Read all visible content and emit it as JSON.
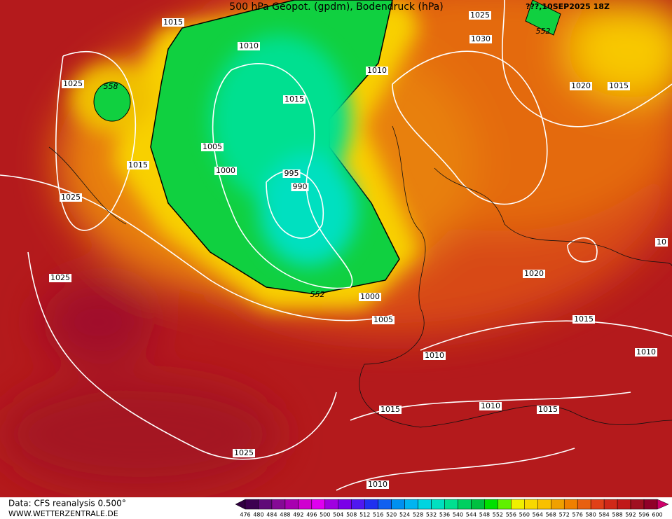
{
  "header": {
    "title": "500 hPa Geopot. (gpdm), Bodendruck (hPa)",
    "date": "???,10SEP2025 18Z"
  },
  "isobar_labels": [
    "1015",
    "1025",
    "552",
    "1010",
    "1030",
    "1010",
    "1025",
    "558",
    "1015",
    "1020",
    "1015",
    "1005",
    "1015",
    "1000",
    "995",
    "990",
    "1025",
    "10",
    "1020",
    "1025",
    "552",
    "1000",
    "1005",
    "1015",
    "1010",
    "1010",
    "1010",
    "1015",
    "1015",
    "1025",
    "1010"
  ],
  "footer": {
    "source": "Data: CFS reanalysis 0.500°",
    "site": "WWW.WETTERZENTRALE.DE"
  },
  "colorbar": {
    "ticks": [
      476,
      480,
      484,
      488,
      492,
      496,
      500,
      504,
      508,
      512,
      516,
      520,
      524,
      528,
      532,
      536,
      540,
      544,
      548,
      552,
      556,
      560,
      564,
      568,
      572,
      576,
      580,
      584,
      588,
      592,
      596,
      600
    ],
    "colors": [
      "#3c0050",
      "#600a78",
      "#850a95",
      "#a800b0",
      "#d000d0",
      "#e000f0",
      "#a000e0",
      "#7a00e8",
      "#5018f0",
      "#2030f0",
      "#1060f0",
      "#0090f0",
      "#00b4f0",
      "#00d4e0",
      "#00e0c0",
      "#00e090",
      "#00d060",
      "#00c040",
      "#00e000",
      "#60f000",
      "#f0f000",
      "#f8d800",
      "#f8c000",
      "#f0a000",
      "#f08000",
      "#e86010",
      "#e04018",
      "#d02818",
      "#c01818",
      "#a01020",
      "#900028"
    ]
  }
}
